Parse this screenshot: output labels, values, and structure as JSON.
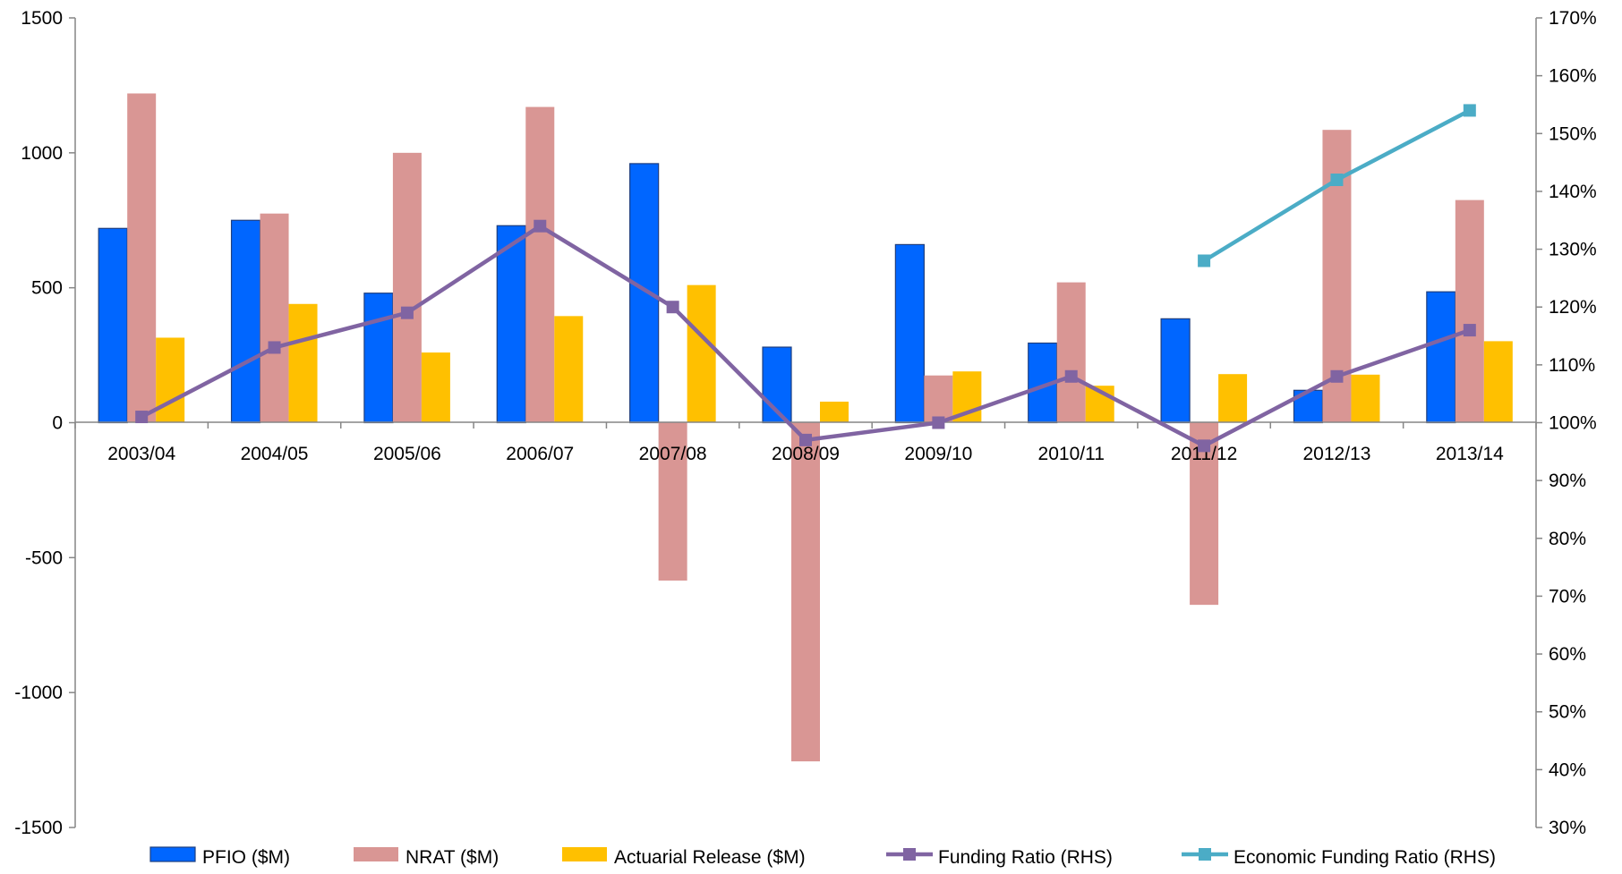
{
  "chart_data": {
    "type": "bar",
    "categories": [
      "2003/04",
      "2004/05",
      "2005/06",
      "2006/07",
      "2007/08",
      "2008/09",
      "2009/10",
      "2010/11",
      "2011/12",
      "2012/13",
      "2013/14"
    ],
    "left_axis": {
      "ylim": [
        -1500,
        1500
      ],
      "ticks": [
        1500,
        1000,
        500,
        0,
        -500,
        -1000,
        -1500
      ],
      "tick_labels": [
        "1500",
        "1000",
        "500",
        "0",
        "-500",
        "-1000",
        "-1500"
      ]
    },
    "right_axis": {
      "ylim": [
        30,
        170
      ],
      "ticks": [
        170,
        160,
        150,
        140,
        130,
        120,
        110,
        100,
        90,
        80,
        70,
        60,
        50,
        40,
        30
      ],
      "tick_labels": [
        "170%",
        "160%",
        "150%",
        "140%",
        "130%",
        "120%",
        "110%",
        "100%",
        "90%",
        "80%",
        "70%",
        "60%",
        "50%",
        "40%",
        "30%"
      ]
    },
    "bar_series": [
      {
        "name": "PFIO ($M)",
        "color": "#0066FF",
        "values": [
          720,
          750,
          480,
          730,
          960,
          280,
          660,
          295,
          385,
          120,
          485
        ]
      },
      {
        "name": "NRAT ($M)",
        "color": "#D99694",
        "values": [
          1220,
          775,
          1000,
          1170,
          -585,
          -1255,
          175,
          520,
          -675,
          1085,
          825
        ]
      },
      {
        "name": "Actuarial Release ($M)",
        "color": "#FFC000",
        "values": [
          315,
          440,
          260,
          395,
          510,
          78,
          190,
          137,
          180,
          178,
          302
        ]
      }
    ],
    "line_series": [
      {
        "name": "Funding Ratio (RHS)",
        "color": "#8064A2",
        "axis": "right",
        "values": [
          101,
          113,
          119,
          134,
          120,
          97,
          100,
          108,
          96,
          108,
          116
        ]
      },
      {
        "name": "Economic Funding Ratio (RHS)",
        "color": "#4BACC6",
        "axis": "right",
        "values": [
          null,
          null,
          null,
          null,
          null,
          null,
          null,
          null,
          128,
          142,
          154
        ]
      }
    ],
    "legend_position": "bottom",
    "grid": false
  }
}
